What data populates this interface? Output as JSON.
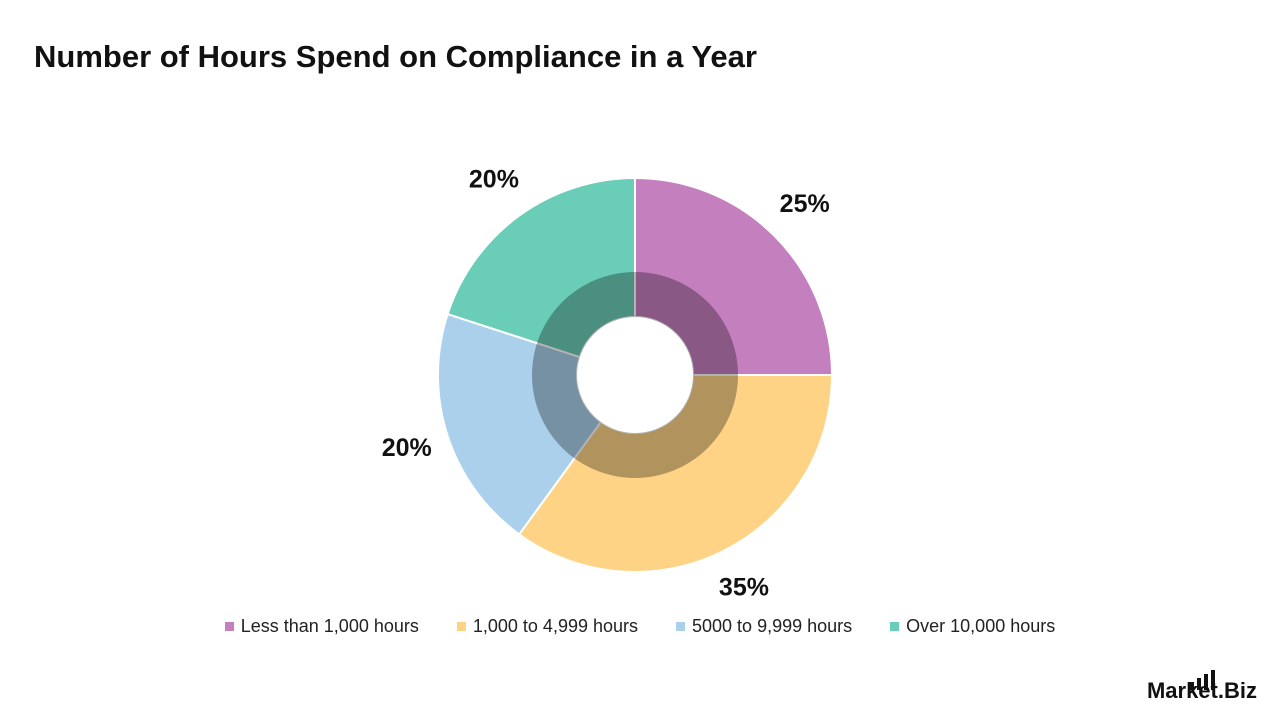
{
  "chart_data": {
    "type": "pie",
    "title": "Number of Hours Spend on Compliance in a Year",
    "categories": [
      "Less than 1,000 hours",
      "1,000 to 4,999 hours",
      "5000 to 9,999 hours",
      "Over 10,000 hours"
    ],
    "values": [
      25,
      35,
      20,
      20
    ],
    "value_labels": [
      "25%",
      "35%",
      "20%",
      "20%"
    ],
    "colors": [
      "#c47fbf",
      "#fed386",
      "#aad0eb",
      "#6acdb8"
    ],
    "legend": "bottom"
  },
  "logo": "Market.Biz"
}
